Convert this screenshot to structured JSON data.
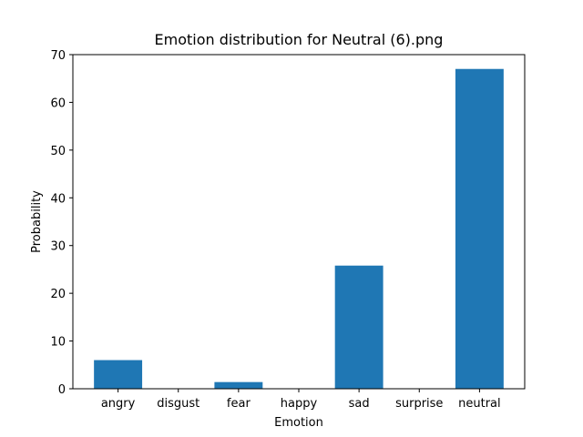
{
  "chart_data": {
    "type": "bar",
    "title": "Emotion distribution for Neutral (6).png",
    "xlabel": "Emotion",
    "ylabel": "Probability",
    "categories": [
      "angry",
      "disgust",
      "fear",
      "happy",
      "sad",
      "surprise",
      "neutral"
    ],
    "values": [
      6.0,
      0.0,
      1.4,
      0.0,
      25.8,
      0.0,
      67.0
    ],
    "ylim": [
      0,
      70
    ],
    "yticks": [
      "0",
      "10",
      "20",
      "30",
      "40",
      "50",
      "60",
      "70"
    ],
    "grid": false,
    "legend": "none",
    "bar_color": "#1f77b4"
  }
}
